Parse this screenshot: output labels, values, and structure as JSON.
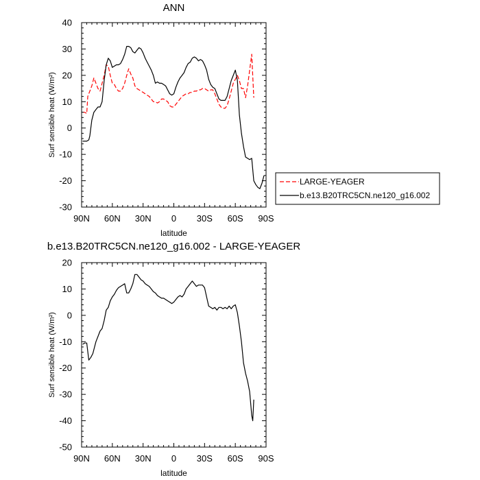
{
  "chart_data": [
    {
      "type": "line",
      "title": "ANN",
      "xlabel": "latitude",
      "ylabel": "Surf sensible heat (W/m²)",
      "xlim": [
        90,
        -90
      ],
      "ylim": [
        -30,
        40
      ],
      "xticks": [
        90,
        60,
        30,
        0,
        -30,
        -60,
        -90
      ],
      "xticklabels": [
        "90N",
        "60N",
        "30N",
        "0",
        "30S",
        "60S",
        "90S"
      ],
      "yticks": [
        -30,
        -20,
        -10,
        0,
        10,
        20,
        30,
        40
      ],
      "legend_position": "right",
      "series": [
        {
          "name": "LARGE-YEAGER",
          "color": "#ff0000",
          "dash": "dashed",
          "points": [
            [
              89,
              6
            ],
            [
              87,
              6
            ],
            [
              85,
              5.5
            ],
            [
              84,
              12
            ],
            [
              82,
              14
            ],
            [
              80,
              16
            ],
            [
              78,
              19
            ],
            [
              76,
              17
            ],
            [
              74,
              15
            ],
            [
              72,
              14
            ],
            [
              70,
              17
            ],
            [
              68,
              20
            ],
            [
              66,
              24
            ],
            [
              64,
              23.5
            ],
            [
              62,
              20
            ],
            [
              60,
              17
            ],
            [
              58,
              16.5
            ],
            [
              56,
              15
            ],
            [
              54,
              14
            ],
            [
              52,
              14
            ],
            [
              50,
              15
            ],
            [
              48,
              17
            ],
            [
              46,
              20
            ],
            [
              44,
              22.5
            ],
            [
              42,
              20.5
            ],
            [
              40,
              19
            ],
            [
              38,
              16
            ],
            [
              36,
              15
            ],
            [
              34,
              14.5
            ],
            [
              32,
              14
            ],
            [
              30,
              13.5
            ],
            [
              28,
              13
            ],
            [
              26,
              12.5
            ],
            [
              24,
              12
            ],
            [
              22,
              11
            ],
            [
              20,
              10
            ],
            [
              18,
              10
            ],
            [
              16,
              9.5
            ],
            [
              14,
              10
            ],
            [
              12,
              11
            ],
            [
              10,
              11
            ],
            [
              8,
              10.5
            ],
            [
              6,
              10
            ],
            [
              4,
              8.5
            ],
            [
              2,
              8
            ],
            [
              0,
              8
            ],
            [
              -2,
              9
            ],
            [
              -4,
              10
            ],
            [
              -6,
              11
            ],
            [
              -8,
              12
            ],
            [
              -10,
              12.5
            ],
            [
              -12,
              13
            ],
            [
              -14,
              13
            ],
            [
              -16,
              13.5
            ],
            [
              -18,
              13.5
            ],
            [
              -20,
              14
            ],
            [
              -22,
              14
            ],
            [
              -24,
              14.5
            ],
            [
              -26,
              14.5
            ],
            [
              -28,
              15
            ],
            [
              -30,
              15
            ],
            [
              -32,
              14.5
            ],
            [
              -34,
              14
            ],
            [
              -36,
              14.5
            ],
            [
              -38,
              14.5
            ],
            [
              -40,
              13
            ],
            [
              -42,
              11
            ],
            [
              -44,
              9
            ],
            [
              -46,
              8
            ],
            [
              -48,
              7.5
            ],
            [
              -50,
              7.5
            ],
            [
              -52,
              8.5
            ],
            [
              -54,
              11
            ],
            [
              -56,
              14
            ],
            [
              -58,
              17
            ],
            [
              -60,
              18.5
            ],
            [
              -62,
              20
            ],
            [
              -64,
              18
            ],
            [
              -66,
              15
            ],
            [
              -68,
              15
            ],
            [
              -70,
              11.5
            ],
            [
              -72,
              16
            ],
            [
              -74,
              22
            ],
            [
              -76,
              28
            ],
            [
              -78,
              11.5
            ]
          ]
        },
        {
          "name": "b.e13.B20TRC5CN.ne120_g16.002",
          "color": "#000000",
          "dash": "solid",
          "points": [
            [
              89,
              -5
            ],
            [
              87,
              -5
            ],
            [
              85,
              -5
            ],
            [
              83,
              -4.5
            ],
            [
              82,
              -3
            ],
            [
              80,
              3
            ],
            [
              78,
              6
            ],
            [
              76,
              7
            ],
            [
              74,
              8
            ],
            [
              72,
              8
            ],
            [
              70,
              10
            ],
            [
              68,
              18
            ],
            [
              66,
              24
            ],
            [
              64,
              26.5
            ],
            [
              62,
              25.5
            ],
            [
              60,
              23
            ],
            [
              58,
              23.5
            ],
            [
              56,
              24
            ],
            [
              54,
              24
            ],
            [
              52,
              24.5
            ],
            [
              50,
              26
            ],
            [
              48,
              28
            ],
            [
              46,
              31
            ],
            [
              44,
              31
            ],
            [
              42,
              30.5
            ],
            [
              40,
              29
            ],
            [
              38,
              28.5
            ],
            [
              36,
              29.5
            ],
            [
              34,
              30.5
            ],
            [
              32,
              30
            ],
            [
              30,
              28.5
            ],
            [
              28,
              26.5
            ],
            [
              26,
              25
            ],
            [
              24,
              23.5
            ],
            [
              22,
              22
            ],
            [
              20,
              20
            ],
            [
              18,
              17
            ],
            [
              16,
              17.5
            ],
            [
              14,
              17
            ],
            [
              12,
              17
            ],
            [
              10,
              16.5
            ],
            [
              8,
              16
            ],
            [
              6,
              14.5
            ],
            [
              4,
              13
            ],
            [
              2,
              12.5
            ],
            [
              0,
              13
            ],
            [
              -2,
              15.5
            ],
            [
              -4,
              17.5
            ],
            [
              -6,
              19
            ],
            [
              -8,
              20
            ],
            [
              -10,
              21
            ],
            [
              -12,
              23
            ],
            [
              -14,
              24.5
            ],
            [
              -16,
              25
            ],
            [
              -18,
              26.5
            ],
            [
              -20,
              27
            ],
            [
              -22,
              26.5
            ],
            [
              -24,
              25.5
            ],
            [
              -26,
              26
            ],
            [
              -28,
              25.5
            ],
            [
              -30,
              24
            ],
            [
              -32,
              22
            ],
            [
              -34,
              18.5
            ],
            [
              -36,
              16.5
            ],
            [
              -38,
              15.5
            ],
            [
              -40,
              15
            ],
            [
              -42,
              13
            ],
            [
              -44,
              11
            ],
            [
              -46,
              10.5
            ],
            [
              -48,
              10.5
            ],
            [
              -50,
              10.5
            ],
            [
              -52,
              12
            ],
            [
              -54,
              15
            ],
            [
              -56,
              18
            ],
            [
              -58,
              20
            ],
            [
              -60,
              22
            ],
            [
              -62,
              18
            ],
            [
              -64,
              5
            ],
            [
              -66,
              -2
            ],
            [
              -68,
              -7
            ],
            [
              -70,
              -11
            ],
            [
              -72,
              -11.5
            ],
            [
              -74,
              -12
            ],
            [
              -76,
              -11.5
            ],
            [
              -78,
              -20
            ],
            [
              -80,
              -21.5
            ],
            [
              -82,
              -22.5
            ],
            [
              -84,
              -23
            ],
            [
              -86,
              -21
            ],
            [
              -88,
              -18
            ]
          ]
        }
      ]
    },
    {
      "type": "line",
      "title": "b.e13.B20TRC5CN.ne120_g16.002 - LARGE-YEAGER",
      "xlabel": "latitude",
      "ylabel": "Surf sensible heat (W/m²)",
      "xlim": [
        90,
        -90
      ],
      "ylim": [
        -50,
        20
      ],
      "xticks": [
        90,
        60,
        30,
        0,
        -30,
        -60,
        -90
      ],
      "xticklabels": [
        "90N",
        "60N",
        "30N",
        "0",
        "30S",
        "60S",
        "90S"
      ],
      "yticks": [
        -50,
        -40,
        -30,
        -20,
        -10,
        0,
        10,
        20
      ],
      "series": [
        {
          "color": "#000000",
          "dash": "solid",
          "points": [
            [
              89,
              -11
            ],
            [
              87,
              -10.5
            ],
            [
              85,
              -10.5
            ],
            [
              83,
              -17
            ],
            [
              81,
              -16
            ],
            [
              79,
              -14.5
            ],
            [
              78,
              -13
            ],
            [
              76,
              -10
            ],
            [
              74,
              -8
            ],
            [
              72,
              -6
            ],
            [
              70,
              -5
            ],
            [
              68,
              -2
            ],
            [
              66,
              2
            ],
            [
              64,
              3
            ],
            [
              62,
              5.5
            ],
            [
              60,
              7
            ],
            [
              58,
              8
            ],
            [
              56,
              9.5
            ],
            [
              54,
              10.5
            ],
            [
              52,
              11
            ],
            [
              50,
              11.5
            ],
            [
              48,
              12
            ],
            [
              46,
              8.5
            ],
            [
              44,
              8.5
            ],
            [
              42,
              10
            ],
            [
              40,
              12
            ],
            [
              38,
              15.5
            ],
            [
              36,
              15.5
            ],
            [
              34,
              14.5
            ],
            [
              32,
              13.5
            ],
            [
              30,
              13
            ],
            [
              28,
              12
            ],
            [
              26,
              11.5
            ],
            [
              24,
              11
            ],
            [
              22,
              10
            ],
            [
              20,
              9
            ],
            [
              18,
              8.5
            ],
            [
              16,
              7.5
            ],
            [
              14,
              7
            ],
            [
              12,
              6.5
            ],
            [
              10,
              6.5
            ],
            [
              8,
              6
            ],
            [
              6,
              5.5
            ],
            [
              4,
              5
            ],
            [
              2,
              4.5
            ],
            [
              0,
              5
            ],
            [
              -2,
              6
            ],
            [
              -4,
              7
            ],
            [
              -6,
              7.5
            ],
            [
              -8,
              7
            ],
            [
              -10,
              8
            ],
            [
              -12,
              10
            ],
            [
              -14,
              11
            ],
            [
              -16,
              12
            ],
            [
              -18,
              13
            ],
            [
              -20,
              12
            ],
            [
              -22,
              11
            ],
            [
              -24,
              11.5
            ],
            [
              -26,
              11.5
            ],
            [
              -28,
              11.5
            ],
            [
              -30,
              10.5
            ],
            [
              -32,
              7
            ],
            [
              -34,
              3.5
            ],
            [
              -36,
              3
            ],
            [
              -38,
              2.5
            ],
            [
              -40,
              3
            ],
            [
              -42,
              2
            ],
            [
              -44,
              3
            ],
            [
              -46,
              3
            ],
            [
              -48,
              2.5
            ],
            [
              -50,
              3
            ],
            [
              -52,
              2.5
            ],
            [
              -54,
              3.5
            ],
            [
              -56,
              2.5
            ],
            [
              -58,
              3.5
            ],
            [
              -60,
              4
            ],
            [
              -62,
              1
            ],
            [
              -64,
              -4
            ],
            [
              -66,
              -10
            ],
            [
              -68,
              -18
            ],
            [
              -70,
              -22
            ],
            [
              -72,
              -25
            ],
            [
              -74,
              -29
            ],
            [
              -76,
              -38
            ],
            [
              -77,
              -40
            ],
            [
              -78,
              -32
            ]
          ]
        }
      ]
    }
  ]
}
